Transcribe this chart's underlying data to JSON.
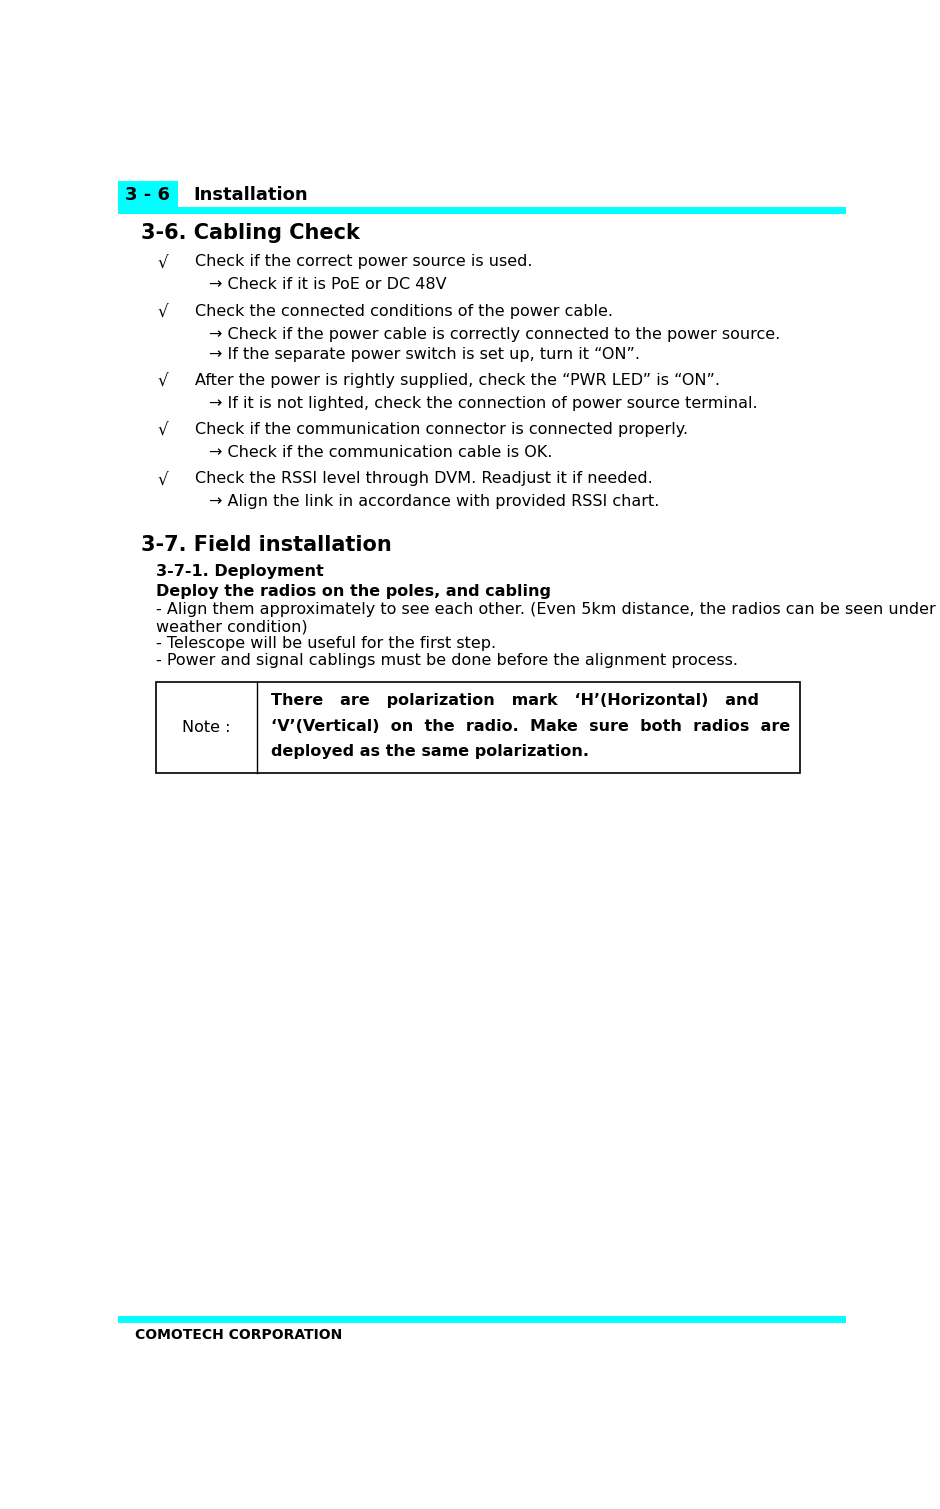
{
  "page_bg": "#ffffff",
  "cyan_color": "#00FFFF",
  "header_text": "3 - 6",
  "header_label": "Installation",
  "footer_text": "COMOTECH CORPORATION",
  "section1_title": "3-6. Cabling Check",
  "section2_title": "3-7. Field installation",
  "subsection_title": "3-7-1. Deployment",
  "bold_line": "Deploy the radios on the poles, and cabling",
  "deploy_lines": [
    "- Align them approximately to see each other. (Even 5km distance, the radios can be seen under clear",
    "weather condition)",
    "- Telescope will be useful for the first step.",
    "- Power and signal cablings must be done before the alignment process."
  ],
  "note_label": "Note :",
  "note_text_line1": "There   are   polarization   mark   ‘H’(Horizontal)   and",
  "note_text_line2": "‘V’(Vertical)  on  the  radio.  Make  sure  both  radios  are",
  "note_text_line3": "deployed as the same polarization.",
  "checklist": [
    {
      "bullet": "√",
      "main": "Check if the correct power source is used.",
      "subs": [
        "→ Check if it is PoE or DC 48V"
      ]
    },
    {
      "bullet": "√",
      "main": "Check the connected conditions of the power cable.",
      "subs": [
        "→ Check if the power cable is correctly connected to the power source.",
        "→ If the separate power switch is set up, turn it “ON”."
      ]
    },
    {
      "bullet": "√",
      "main": "After the power is rightly supplied, check the “PWR LED” is “ON”.",
      "subs": [
        "→ If it is not lighted, check the connection of power source terminal."
      ]
    },
    {
      "bullet": "√",
      "main": "Check if the communication connector is connected properly.",
      "subs": [
        "→ Check if the communication cable is OK."
      ]
    },
    {
      "bullet": "√",
      "main": "Check the RSSI level through DVM. Readjust it if needed.",
      "subs": [
        "→ Align the link in accordance with provided RSSI chart."
      ]
    }
  ]
}
